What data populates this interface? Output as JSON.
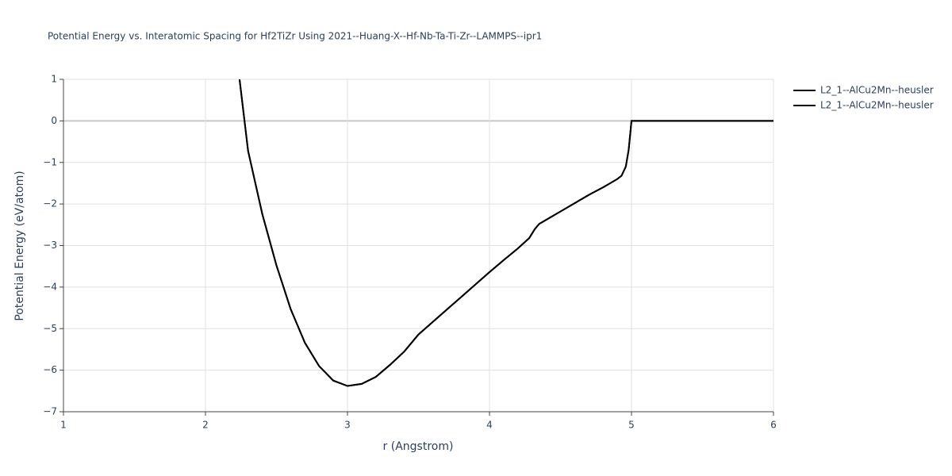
{
  "chart_data": {
    "type": "line",
    "title": "Potential Energy vs. Interatomic Spacing for Hf2TiZr Using 2021--Huang-X--Hf-Nb-Ta-Ti-Zr--LAMMPS--ipr1",
    "x_label": "r (Angstrom)",
    "y_label": "Potential Energy (eV/atom)",
    "x": [
      2.24,
      2.3,
      2.4,
      2.5,
      2.6,
      2.7,
      2.8,
      2.9,
      3.0,
      3.1,
      3.2,
      3.3,
      3.4,
      3.5,
      3.6,
      3.7,
      3.8,
      3.9,
      4.0,
      4.1,
      4.2,
      4.28,
      4.32,
      4.35,
      4.4,
      4.5,
      4.6,
      4.7,
      4.8,
      4.9,
      4.93,
      4.96,
      4.98,
      5.0,
      5.5,
      6.0
    ],
    "series": [
      {
        "name": "L2_1--AlCu2Mn--heusler",
        "color": "#000000",
        "values": [
          1.0,
          -0.72,
          -2.24,
          -3.48,
          -4.53,
          -5.34,
          -5.9,
          -6.25,
          -6.38,
          -6.33,
          -6.16,
          -5.87,
          -5.55,
          -5.14,
          -4.84,
          -4.54,
          -4.24,
          -3.94,
          -3.64,
          -3.35,
          -3.07,
          -2.82,
          -2.6,
          -2.48,
          -2.38,
          -2.18,
          -1.98,
          -1.78,
          -1.6,
          -1.4,
          -1.32,
          -1.1,
          -0.7,
          0,
          0,
          0
        ]
      },
      {
        "name": "L2_1--AlCu2Mn--heusler",
        "color": "#000000",
        "values": [
          1.0,
          -0.72,
          -2.24,
          -3.48,
          -4.53,
          -5.34,
          -5.9,
          -6.25,
          -6.38,
          -6.33,
          -6.16,
          -5.87,
          -5.55,
          -5.14,
          -4.84,
          -4.54,
          -4.24,
          -3.94,
          -3.64,
          -3.35,
          -3.07,
          -2.82,
          -2.6,
          -2.48,
          -2.38,
          -2.18,
          -1.98,
          -1.78,
          -1.6,
          -1.4,
          -1.32,
          -1.1,
          -0.7,
          0,
          0,
          0
        ]
      }
    ],
    "xlim": [
      1,
      6
    ],
    "xticks": [
      1,
      2,
      3,
      4,
      5,
      6
    ],
    "ylim": [
      -7,
      1
    ],
    "yticks": [
      {
        "value": -7,
        "label": "−7"
      },
      {
        "value": -6,
        "label": "−6"
      },
      {
        "value": -5,
        "label": "−5"
      },
      {
        "value": -4,
        "label": "−4"
      },
      {
        "value": -3,
        "label": "−3"
      },
      {
        "value": -2,
        "label": "−2"
      },
      {
        "value": -1,
        "label": "−1"
      },
      0,
      1
    ],
    "grid": true,
    "legend": "right"
  }
}
